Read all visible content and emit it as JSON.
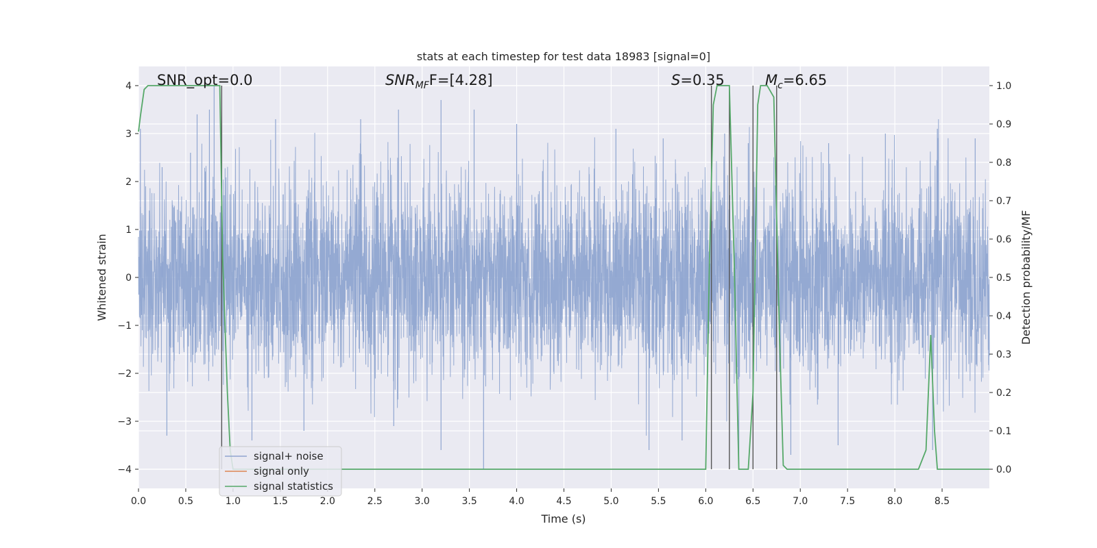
{
  "chart_data": {
    "type": "line",
    "title": "stats at each timestep for test data 18983 [signal=0]",
    "xlabel": "Time (s)",
    "ylabel_left": "Whitened strain",
    "ylabel_right": "Detection probability/MF",
    "xlim": [
      0.0,
      9.0
    ],
    "ylim_left": [
      -4.4,
      4.4
    ],
    "ylim_right": [
      -0.05,
      1.05
    ],
    "x_ticks": [
      "0.0",
      "0.5",
      "1.0",
      "1.5",
      "2.0",
      "2.5",
      "3.0",
      "3.5",
      "4.0",
      "4.5",
      "5.0",
      "5.5",
      "6.0",
      "6.5",
      "7.0",
      "7.5",
      "8.0",
      "8.5"
    ],
    "y_ticks_left": [
      "−4",
      "−3",
      "−2",
      "−1",
      "0",
      "1",
      "2",
      "3",
      "4"
    ],
    "y_ticks_right": [
      "0.0",
      "0.1",
      "0.2",
      "0.3",
      "0.4",
      "0.5",
      "0.6",
      "0.7",
      "0.8",
      "0.9",
      "1.0"
    ],
    "grid": true,
    "legend_placement": "lower-left",
    "annotations": {
      "snr_opt": "SNR_opt=0.0",
      "snr_mf_main": "SNR",
      "snr_mf_sub": "MF",
      "snr_mf_rest": "F=[4.28]",
      "s_main": "S",
      "s_rest": "=0.35",
      "mc_main": "M",
      "mc_sub": "c",
      "mc_rest": "=6.65"
    },
    "series": [
      {
        "name": "signal+ noise",
        "color": "#8fa5d0",
        "axis": "left",
        "description_values": "Gaussian whitened noise, approx. range -3.7 to 4.0",
        "envelope_peaks": [
          [
            0.02,
            3.1
          ],
          [
            0.25,
            2.3
          ],
          [
            0.55,
            2.6
          ],
          [
            0.62,
            3.4
          ],
          [
            0.75,
            3.5
          ],
          [
            0.8,
            4.0
          ],
          [
            1.45,
            3.3
          ],
          [
            2.35,
            3.3
          ],
          [
            2.75,
            3.5
          ],
          [
            3.2,
            3.7
          ],
          [
            3.55,
            3.5
          ],
          [
            4.0,
            3.2
          ],
          [
            5.05,
            3.1
          ],
          [
            5.55,
            2.9
          ],
          [
            6.2,
            3.0
          ],
          [
            6.45,
            2.8
          ],
          [
            7.3,
            2.8
          ],
          [
            7.9,
            3.0
          ],
          [
            8.45,
            3.1
          ],
          [
            8.85,
            2.9
          ]
        ],
        "envelope_troughs": [
          [
            0.3,
            -3.3
          ],
          [
            1.2,
            -3.4
          ],
          [
            1.75,
            -3.2
          ],
          [
            2.7,
            -3.1
          ],
          [
            3.2,
            -3.6
          ],
          [
            3.65,
            -4.0
          ],
          [
            5.4,
            -3.6
          ],
          [
            5.75,
            -3.4
          ],
          [
            6.35,
            -3.9
          ],
          [
            6.9,
            -3.7
          ],
          [
            7.4,
            -3.5
          ],
          [
            8.4,
            -3.6
          ]
        ]
      },
      {
        "name": "signal only",
        "color": "#dd8452",
        "axis": "left",
        "x": [
          0.0,
          9.0
        ],
        "y": [
          0.0,
          0.0
        ]
      },
      {
        "name": "signal statistics",
        "color": "#55a868",
        "axis": "right",
        "x": [
          0.0,
          0.02,
          0.06,
          0.1,
          0.2,
          0.4,
          0.6,
          0.8,
          0.86,
          0.89,
          0.94,
          0.97,
          1.0,
          2.0,
          3.0,
          4.0,
          4.9,
          5.5,
          6.0,
          6.04,
          6.08,
          6.12,
          6.17,
          6.25,
          6.3,
          6.35,
          6.38,
          6.45,
          6.5,
          6.55,
          6.58,
          6.65,
          6.72,
          6.78,
          6.82,
          6.86,
          6.9,
          7.0,
          8.0,
          8.25,
          8.33,
          8.38,
          8.42,
          8.45,
          9.0
        ],
        "y": [
          0.88,
          0.92,
          0.99,
          1.0,
          1.0,
          1.0,
          1.0,
          1.0,
          1.0,
          0.55,
          0.2,
          0.05,
          0.0,
          0.0,
          0.0,
          0.0,
          0.0,
          0.0,
          0.0,
          0.55,
          0.95,
          1.0,
          1.0,
          1.0,
          0.55,
          0.0,
          0.0,
          0.0,
          0.2,
          0.95,
          1.0,
          1.0,
          0.97,
          0.35,
          0.01,
          0.0,
          0.0,
          0.0,
          0.0,
          0.0,
          0.05,
          0.35,
          0.1,
          0.0,
          0.0
        ]
      }
    ],
    "vertical_lines_x": [
      0.88,
      6.06,
      6.25,
      6.5,
      6.75
    ]
  }
}
